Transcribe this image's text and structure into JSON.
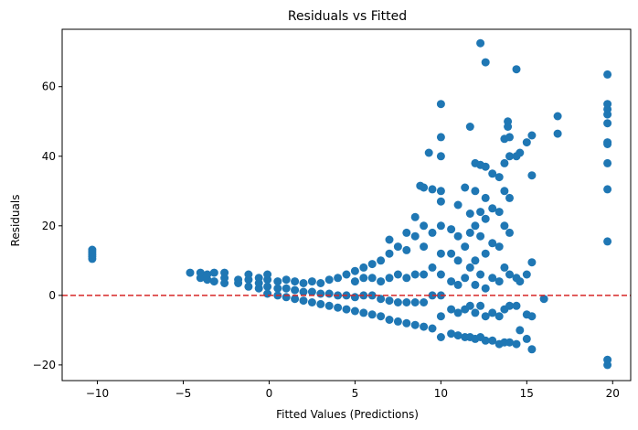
{
  "chart_data": {
    "type": "scatter",
    "title": "Residuals vs Fitted",
    "xlabel": "Fitted Values (Predictions)",
    "ylabel": "Residuals",
    "xlim": [
      -12.05,
      21.05
    ],
    "ylim": [
      -24.5,
      76.5
    ],
    "xticks": [
      -10,
      -5,
      0,
      5,
      10,
      15,
      20
    ],
    "yticks": [
      -20,
      0,
      20,
      40,
      60
    ],
    "xtick_labels": [
      "−10",
      "−5",
      "0",
      "5",
      "10",
      "15",
      "20"
    ],
    "ytick_labels": [
      "−20",
      "0",
      "20",
      "40",
      "60"
    ],
    "grid": false,
    "point_color": "#1f77b4",
    "reference_line": {
      "y": 0,
      "color": "#d62728",
      "style": "dashed"
    },
    "series": [
      {
        "points": [
          [
            -10.3,
            10.5
          ],
          [
            -10.3,
            11.2
          ],
          [
            -10.3,
            11.8
          ],
          [
            -10.3,
            12.5
          ],
          [
            -10.3,
            13.1
          ],
          [
            -4.6,
            6.5
          ],
          [
            -4.0,
            5.0
          ],
          [
            -4.0,
            6.5
          ],
          [
            -3.6,
            4.5
          ],
          [
            -3.6,
            6.0
          ],
          [
            -3.2,
            4.0
          ],
          [
            -3.2,
            6.5
          ],
          [
            -2.6,
            3.5
          ],
          [
            -2.6,
            5.0
          ],
          [
            -2.6,
            6.5
          ],
          [
            -1.8,
            3.5
          ],
          [
            -1.8,
            4.5
          ],
          [
            -1.2,
            2.5
          ],
          [
            -1.2,
            4.5
          ],
          [
            -1.2,
            6.0
          ],
          [
            -0.6,
            2.0
          ],
          [
            -0.6,
            3.5
          ],
          [
            -0.6,
            5.0
          ],
          [
            -0.1,
            0.5
          ],
          [
            -0.1,
            2.5
          ],
          [
            -0.1,
            4.5
          ],
          [
            -0.1,
            6.0
          ],
          [
            0.5,
            0.0
          ],
          [
            0.5,
            2.0
          ],
          [
            0.5,
            4.0
          ],
          [
            1.0,
            -0.5
          ],
          [
            1.0,
            2.0
          ],
          [
            1.0,
            4.5
          ],
          [
            1.5,
            -1.0
          ],
          [
            1.5,
            1.5
          ],
          [
            1.5,
            4.0
          ],
          [
            2.0,
            -1.5
          ],
          [
            2.0,
            1.0
          ],
          [
            2.0,
            3.5
          ],
          [
            2.5,
            -2.0
          ],
          [
            2.5,
            1.0
          ],
          [
            2.5,
            4.0
          ],
          [
            3.0,
            -2.5
          ],
          [
            3.0,
            0.5
          ],
          [
            3.0,
            3.5
          ],
          [
            3.5,
            -3.0
          ],
          [
            3.5,
            0.5
          ],
          [
            3.5,
            4.5
          ],
          [
            4.0,
            -3.5
          ],
          [
            4.0,
            0.0
          ],
          [
            4.0,
            5.0
          ],
          [
            4.5,
            -4.0
          ],
          [
            4.5,
            0.0
          ],
          [
            4.5,
            6.0
          ],
          [
            5.0,
            -4.5
          ],
          [
            5.0,
            -0.5
          ],
          [
            5.0,
            4.0
          ],
          [
            5.0,
            7.0
          ],
          [
            5.5,
            -5.0
          ],
          [
            5.5,
            0.0
          ],
          [
            5.5,
            5.0
          ],
          [
            5.5,
            8.0
          ],
          [
            6.0,
            -5.5
          ],
          [
            6.0,
            0.0
          ],
          [
            6.0,
            5.0
          ],
          [
            6.0,
            9.0
          ],
          [
            6.5,
            -6.0
          ],
          [
            6.5,
            -1.0
          ],
          [
            6.5,
            4.0
          ],
          [
            6.5,
            10.0
          ],
          [
            7.0,
            -7.0
          ],
          [
            7.0,
            -1.5
          ],
          [
            7.0,
            5.0
          ],
          [
            7.0,
            12.0
          ],
          [
            7.0,
            16.0
          ],
          [
            7.5,
            -7.5
          ],
          [
            7.5,
            -2.0
          ],
          [
            7.5,
            6.0
          ],
          [
            7.5,
            14.0
          ],
          [
            8.0,
            -8.0
          ],
          [
            8.0,
            -2.0
          ],
          [
            8.0,
            5.0
          ],
          [
            8.0,
            13.0
          ],
          [
            8.0,
            18.0
          ],
          [
            8.5,
            -8.5
          ],
          [
            8.5,
            -2.0
          ],
          [
            8.5,
            6.0
          ],
          [
            8.5,
            17.0
          ],
          [
            8.5,
            22.5
          ],
          [
            8.8,
            31.5
          ],
          [
            9.0,
            -9.0
          ],
          [
            9.0,
            -2.0
          ],
          [
            9.0,
            6.0
          ],
          [
            9.0,
            14.0
          ],
          [
            9.0,
            20.0
          ],
          [
            9.0,
            31.0
          ],
          [
            9.3,
            41.0
          ],
          [
            9.5,
            -9.5
          ],
          [
            9.5,
            0.0
          ],
          [
            9.5,
            8.0
          ],
          [
            9.5,
            18.0
          ],
          [
            9.5,
            30.5
          ],
          [
            10.0,
            -12.0
          ],
          [
            10.0,
            -6.0
          ],
          [
            10.0,
            0.0
          ],
          [
            10.0,
            6.0
          ],
          [
            10.0,
            12.0
          ],
          [
            10.0,
            20.0
          ],
          [
            10.0,
            27.0
          ],
          [
            10.0,
            30.0
          ],
          [
            10.0,
            40.0
          ],
          [
            10.0,
            45.5
          ],
          [
            10.0,
            55.0
          ],
          [
            10.6,
            -11.0
          ],
          [
            10.6,
            -4.0
          ],
          [
            10.6,
            4.0
          ],
          [
            10.6,
            12.0
          ],
          [
            10.6,
            19.0
          ],
          [
            11.0,
            -11.5
          ],
          [
            11.0,
            -5.0
          ],
          [
            11.0,
            3.0
          ],
          [
            11.0,
            10.0
          ],
          [
            11.0,
            17.0
          ],
          [
            11.0,
            26.0
          ],
          [
            11.4,
            -12.0
          ],
          [
            11.4,
            -4.0
          ],
          [
            11.4,
            5.0
          ],
          [
            11.4,
            14.0
          ],
          [
            11.4,
            31.0
          ],
          [
            11.7,
            -12.0
          ],
          [
            11.7,
            -3.0
          ],
          [
            11.7,
            8.0
          ],
          [
            11.7,
            18.0
          ],
          [
            11.7,
            23.5
          ],
          [
            11.7,
            48.5
          ],
          [
            12.0,
            -12.5
          ],
          [
            12.0,
            -5.0
          ],
          [
            12.0,
            3.0
          ],
          [
            12.0,
            10.0
          ],
          [
            12.0,
            20.0
          ],
          [
            12.0,
            30.0
          ],
          [
            12.0,
            38.0
          ],
          [
            12.3,
            -12.0
          ],
          [
            12.3,
            -3.0
          ],
          [
            12.3,
            6.0
          ],
          [
            12.3,
            17.0
          ],
          [
            12.3,
            24.0
          ],
          [
            12.3,
            37.5
          ],
          [
            12.3,
            72.5
          ],
          [
            12.6,
            -13.0
          ],
          [
            12.6,
            -6.0
          ],
          [
            12.6,
            2.0
          ],
          [
            12.6,
            12.0
          ],
          [
            12.6,
            22.0
          ],
          [
            12.6,
            28.0
          ],
          [
            12.6,
            37.0
          ],
          [
            12.6,
            67.0
          ],
          [
            13.0,
            -13.0
          ],
          [
            13.0,
            -5.0
          ],
          [
            13.0,
            5.0
          ],
          [
            13.0,
            15.0
          ],
          [
            13.0,
            25.0
          ],
          [
            13.0,
            35.0
          ],
          [
            13.4,
            -14.0
          ],
          [
            13.4,
            -6.0
          ],
          [
            13.4,
            4.0
          ],
          [
            13.4,
            14.0
          ],
          [
            13.4,
            24.0
          ],
          [
            13.4,
            34.0
          ],
          [
            13.7,
            -13.5
          ],
          [
            13.7,
            -4.0
          ],
          [
            13.7,
            8.0
          ],
          [
            13.7,
            20.0
          ],
          [
            13.7,
            30.0
          ],
          [
            13.7,
            38.0
          ],
          [
            13.7,
            45.0
          ],
          [
            13.9,
            50.0
          ],
          [
            13.9,
            48.5
          ],
          [
            14.0,
            -13.5
          ],
          [
            14.0,
            -3.0
          ],
          [
            14.0,
            6.0
          ],
          [
            14.0,
            18.0
          ],
          [
            14.0,
            28.0
          ],
          [
            14.0,
            40.0
          ],
          [
            14.0,
            45.5
          ],
          [
            14.4,
            -14.0
          ],
          [
            14.4,
            -3.0
          ],
          [
            14.4,
            5.0
          ],
          [
            14.4,
            40.0
          ],
          [
            14.4,
            65.0
          ],
          [
            14.6,
            -10.0
          ],
          [
            14.6,
            4.0
          ],
          [
            14.6,
            41.0
          ],
          [
            15.0,
            -12.5
          ],
          [
            15.0,
            -5.5
          ],
          [
            15.0,
            6.0
          ],
          [
            15.0,
            44.0
          ],
          [
            15.3,
            -6.0
          ],
          [
            15.3,
            -15.5
          ],
          [
            15.3,
            9.5
          ],
          [
            15.3,
            34.5
          ],
          [
            15.3,
            46.0
          ],
          [
            16.0,
            -1.0
          ],
          [
            16.8,
            46.5
          ],
          [
            16.8,
            51.5
          ],
          [
            19.7,
            -20.0
          ],
          [
            19.7,
            -18.5
          ],
          [
            19.7,
            15.5
          ],
          [
            19.7,
            30.5
          ],
          [
            19.7,
            38.0
          ],
          [
            19.7,
            43.5
          ],
          [
            19.7,
            44.0
          ],
          [
            19.7,
            49.5
          ],
          [
            19.7,
            52.0
          ],
          [
            19.7,
            53.5
          ],
          [
            19.7,
            55.0
          ],
          [
            19.7,
            63.5
          ]
        ]
      }
    ]
  }
}
